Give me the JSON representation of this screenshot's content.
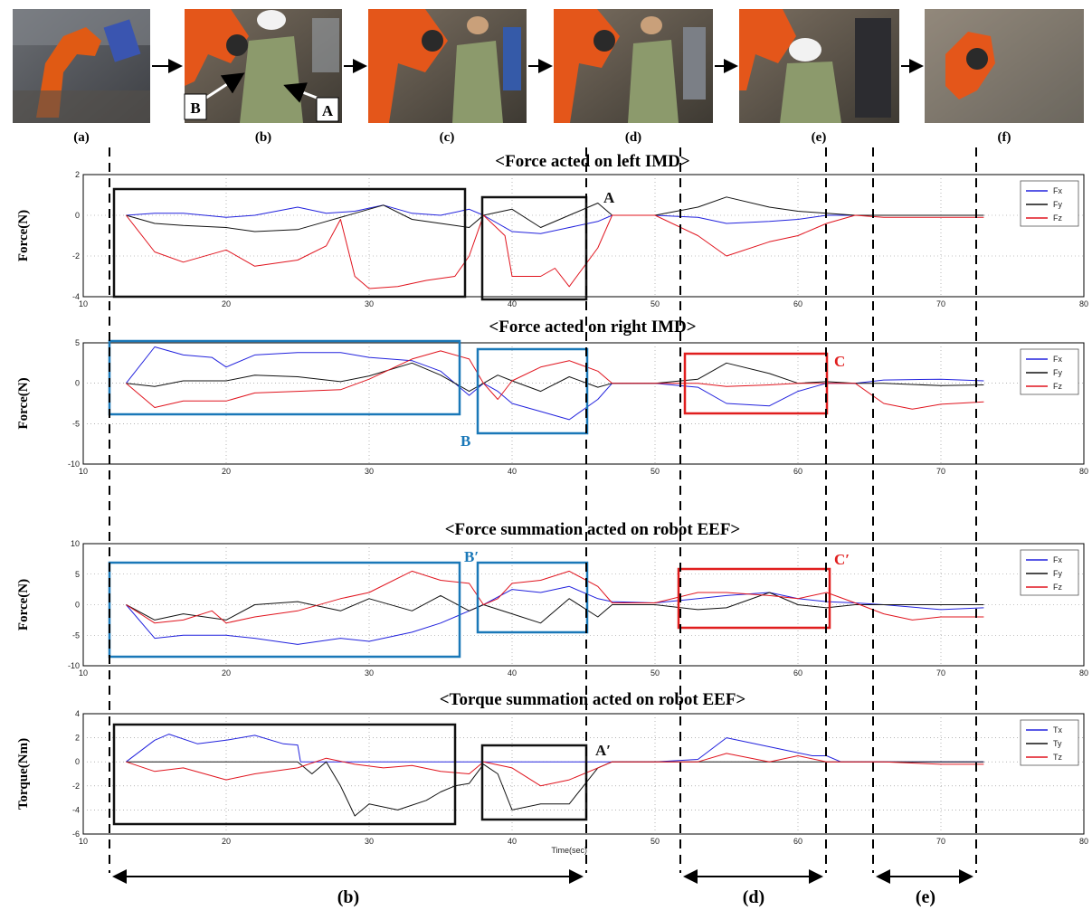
{
  "photos": {
    "labels": [
      "(a)",
      "(b)",
      "(c)",
      "(d)",
      "(e)",
      "(f)"
    ],
    "callouts": [
      "A",
      "B"
    ]
  },
  "bottom_labels": [
    "(b)",
    "(d)",
    "(e)"
  ],
  "colors": {
    "blue": "#2222dd",
    "black": "#111111",
    "red": "#e0141e",
    "teal": "#1a78b8",
    "redbox": "#e01e1e"
  },
  "chart_data": [
    {
      "type": "line",
      "title": "<Force acted on left IMD>",
      "ylabel": "Force(N)",
      "xlabel": "",
      "xlim": [
        10,
        80
      ],
      "ylim": [
        -4,
        2
      ],
      "xticks": [
        10,
        20,
        30,
        40,
        50,
        60,
        70,
        80
      ],
      "yticks": [
        -4,
        -2,
        0,
        2
      ],
      "grid": true,
      "legend_position": "top-right",
      "series": [
        {
          "name": "Fx",
          "color": "#2222dd",
          "x": [
            13,
            15,
            17,
            20,
            22,
            25,
            27,
            29,
            31,
            33,
            35,
            37,
            38,
            40,
            42,
            44,
            46,
            47,
            50,
            53,
            55,
            58,
            60,
            62,
            64,
            66,
            70,
            73
          ],
          "values": [
            0,
            0.1,
            0.1,
            -0.1,
            0,
            0.4,
            0.1,
            0.2,
            0.5,
            0.1,
            0,
            0.3,
            0,
            -0.8,
            -0.9,
            -0.6,
            -0.3,
            0,
            0,
            -0.1,
            -0.4,
            -0.3,
            -0.2,
            0,
            0,
            0,
            0,
            0
          ]
        },
        {
          "name": "Fy",
          "color": "#111111",
          "x": [
            13,
            15,
            17,
            20,
            22,
            25,
            27,
            29,
            31,
            33,
            35,
            37,
            38,
            40,
            42,
            44,
            46,
            47,
            50,
            53,
            55,
            58,
            60,
            62,
            64,
            66,
            70,
            73
          ],
          "values": [
            0,
            -0.4,
            -0.5,
            -0.6,
            -0.8,
            -0.7,
            -0.3,
            0.1,
            0.5,
            -0.2,
            -0.4,
            -0.6,
            0,
            0.3,
            -0.6,
            0,
            0.6,
            0,
            0,
            0.4,
            0.9,
            0.4,
            0.2,
            0.1,
            0,
            0,
            0,
            0
          ]
        },
        {
          "name": "Fz",
          "color": "#e0141e",
          "x": [
            13,
            15,
            17,
            20,
            22,
            25,
            27,
            28,
            29,
            30,
            32,
            34,
            36,
            37,
            38,
            39.5,
            40,
            42,
            43,
            44,
            46,
            47,
            50,
            53,
            55,
            58,
            60,
            62,
            64,
            66,
            70,
            73
          ],
          "values": [
            0,
            -1.8,
            -2.3,
            -1.7,
            -2.5,
            -2.2,
            -1.5,
            -0.2,
            -3.0,
            -3.6,
            -3.5,
            -3.2,
            -3.0,
            -2.0,
            0,
            -1.0,
            -3.0,
            -3.0,
            -2.6,
            -3.5,
            -1.6,
            0,
            0,
            -1.0,
            -2.0,
            -1.3,
            -1.0,
            -0.4,
            0,
            -0.1,
            -0.1,
            -0.1
          ]
        }
      ]
    },
    {
      "type": "line",
      "title": "<Force acted on right IMD>",
      "ylabel": "Force(N)",
      "xlabel": "",
      "xlim": [
        10,
        80
      ],
      "ylim": [
        -10,
        5
      ],
      "xticks": [
        10,
        20,
        30,
        40,
        50,
        60,
        70,
        80
      ],
      "yticks": [
        -10,
        -5,
        0,
        5
      ],
      "grid": true,
      "legend_position": "top-right",
      "series": [
        {
          "name": "Fx",
          "color": "#2222dd",
          "x": [
            13,
            15,
            17,
            19,
            20,
            22,
            25,
            28,
            30,
            33,
            35,
            37,
            38,
            39,
            40,
            42,
            44,
            46,
            47,
            50,
            53,
            55,
            58,
            60,
            62,
            64,
            66,
            70,
            73
          ],
          "values": [
            0,
            4.5,
            3.5,
            3.2,
            2.0,
            3.5,
            3.8,
            3.8,
            3.2,
            2.8,
            1.5,
            -1.5,
            0,
            -1.0,
            -2.5,
            -3.5,
            -4.5,
            -2.0,
            0,
            0,
            -0.5,
            -2.5,
            -2.8,
            -1.0,
            0,
            0,
            0.4,
            0.5,
            0.3
          ]
        },
        {
          "name": "Fy",
          "color": "#111111",
          "x": [
            13,
            15,
            17,
            20,
            22,
            25,
            28,
            30,
            33,
            35,
            37,
            38,
            39,
            40,
            42,
            44,
            46,
            47,
            50,
            53,
            55,
            58,
            60,
            62,
            64,
            66,
            70,
            73
          ],
          "values": [
            0,
            -0.4,
            0.3,
            0.3,
            1.0,
            0.8,
            0.2,
            0.9,
            2.5,
            1.0,
            -1.0,
            0,
            1.0,
            0.3,
            -1.0,
            0.8,
            -0.5,
            0,
            0,
            0.5,
            2.5,
            1.2,
            0,
            0.2,
            0,
            0,
            -0.3,
            -0.2
          ]
        },
        {
          "name": "Fz",
          "color": "#e0141e",
          "x": [
            13,
            15,
            17,
            20,
            22,
            25,
            28,
            30,
            33,
            35,
            37,
            38,
            39,
            40,
            42,
            44,
            46,
            47,
            50,
            53,
            55,
            58,
            60,
            62,
            64,
            66,
            68,
            70,
            73
          ],
          "values": [
            0,
            -3.0,
            -2.2,
            -2.2,
            -1.2,
            -1.0,
            -0.8,
            0.5,
            3.0,
            4.0,
            3.0,
            0,
            -2.0,
            0.3,
            2.0,
            2.8,
            1.5,
            0,
            0,
            0,
            -0.4,
            -0.2,
            0,
            0,
            0,
            -2.5,
            -3.2,
            -2.6,
            -2.3
          ]
        }
      ]
    },
    {
      "type": "line",
      "title": "<Force summation acted on robot EEF>",
      "ylabel": "Force(N)",
      "xlabel": "",
      "xlim": [
        10,
        80
      ],
      "ylim": [
        -10,
        10
      ],
      "xticks": [
        10,
        20,
        30,
        40,
        50,
        60,
        70,
        80
      ],
      "yticks": [
        -10,
        -5,
        0,
        5,
        10
      ],
      "grid": true,
      "legend_position": "top-right",
      "series": [
        {
          "name": "Fx",
          "color": "#2222dd",
          "x": [
            13,
            15,
            17,
            20,
            22,
            25,
            28,
            30,
            33,
            35,
            37,
            38,
            40,
            42,
            44,
            46,
            47,
            50,
            53,
            55,
            58,
            60,
            62,
            64,
            66,
            70,
            73
          ],
          "values": [
            0,
            -5.5,
            -5.0,
            -5.0,
            -5.5,
            -6.5,
            -5.5,
            -6.0,
            -4.5,
            -3.0,
            -1.0,
            0,
            2.5,
            2.0,
            3.0,
            1.0,
            0.5,
            0.3,
            1.0,
            1.5,
            2.0,
            1.0,
            0.5,
            0.3,
            0,
            -0.8,
            -0.5
          ]
        },
        {
          "name": "Fy",
          "color": "#111111",
          "x": [
            13,
            15,
            17,
            20,
            22,
            25,
            28,
            30,
            33,
            35,
            37,
            38,
            40,
            42,
            44,
            46,
            47,
            50,
            53,
            55,
            58,
            60,
            62,
            64,
            66,
            70,
            73
          ],
          "values": [
            0,
            -2.5,
            -1.5,
            -2.5,
            0,
            0.5,
            -1.0,
            1.0,
            -1.0,
            1.5,
            -1.0,
            0,
            -1.5,
            -3.0,
            1.0,
            -2.0,
            0,
            0,
            -0.8,
            -0.5,
            2.0,
            0,
            -0.5,
            0,
            0,
            0,
            0
          ]
        },
        {
          "name": "Fz",
          "color": "#e0141e",
          "x": [
            13,
            15,
            17,
            19,
            20,
            22,
            25,
            28,
            30,
            33,
            35,
            37,
            38,
            39,
            40,
            42,
            44,
            46,
            47,
            50,
            53,
            55,
            58,
            60,
            62,
            64,
            66,
            68,
            70,
            73
          ],
          "values": [
            0,
            -3.0,
            -2.5,
            -1.0,
            -3.0,
            -2.0,
            -1.0,
            1.0,
            2.0,
            5.5,
            4.0,
            3.5,
            0,
            1.0,
            3.5,
            4.0,
            5.5,
            3.0,
            0.3,
            0.3,
            2.0,
            2.0,
            1.5,
            1.0,
            2.0,
            0.3,
            -1.5,
            -2.5,
            -2.0,
            -2.0
          ]
        }
      ]
    },
    {
      "type": "line",
      "title": "<Torque summation acted on robot EEF>",
      "ylabel": "Torque(Nm)",
      "xlabel": "Time(sec)",
      "xlim": [
        10,
        80
      ],
      "ylim": [
        -6,
        4
      ],
      "xticks": [
        10,
        20,
        30,
        40,
        50,
        60,
        70,
        80
      ],
      "yticks": [
        -6,
        -4,
        -2,
        0,
        2,
        4
      ],
      "grid": true,
      "legend_position": "top-right",
      "series": [
        {
          "name": "Tx",
          "color": "#2222dd",
          "x": [
            13,
            15,
            16,
            18,
            20,
            22,
            24,
            25,
            25.2,
            40,
            47,
            50,
            53,
            55,
            57,
            59,
            61,
            62,
            63,
            66,
            70,
            73
          ],
          "values": [
            0,
            1.8,
            2.3,
            1.5,
            1.8,
            2.2,
            1.5,
            1.4,
            0,
            0,
            0,
            0,
            0.2,
            2.0,
            1.5,
            1.0,
            0.5,
            0.5,
            0,
            0,
            0,
            0
          ]
        },
        {
          "name": "Ty",
          "color": "#111111",
          "x": [
            13,
            15,
            25,
            26,
            27,
            28,
            29,
            30,
            32,
            34,
            35,
            36,
            37,
            38,
            39,
            40,
            42,
            44,
            45,
            46,
            47,
            50,
            53,
            63,
            73
          ],
          "values": [
            0,
            0,
            0,
            -1.0,
            0,
            -2.0,
            -4.5,
            -3.5,
            -4.0,
            -3.2,
            -2.5,
            -2.0,
            -1.8,
            -0.2,
            -1.0,
            -4.0,
            -3.5,
            -3.5,
            -2.0,
            -0.5,
            0,
            0,
            0,
            0,
            0
          ]
        },
        {
          "name": "Tz",
          "color": "#e0141e",
          "x": [
            13,
            15,
            17,
            20,
            22,
            25,
            27,
            29,
            31,
            33,
            35,
            37,
            38,
            40,
            42,
            44,
            46,
            47,
            50,
            53,
            55,
            58,
            60,
            62,
            64,
            66,
            70,
            73
          ],
          "values": [
            0,
            -0.8,
            -0.5,
            -1.5,
            -1.0,
            -0.5,
            0.3,
            -0.2,
            -0.5,
            -0.3,
            -0.8,
            -1.0,
            0,
            -0.5,
            -2.0,
            -1.5,
            -0.5,
            0,
            0,
            0,
            0.7,
            0,
            0.5,
            0,
            0,
            0,
            -0.2,
            -0.2
          ]
        }
      ]
    }
  ],
  "annotations": {
    "boxes": [
      "A",
      "B",
      "C",
      "B′",
      "C′",
      "A′"
    ]
  }
}
